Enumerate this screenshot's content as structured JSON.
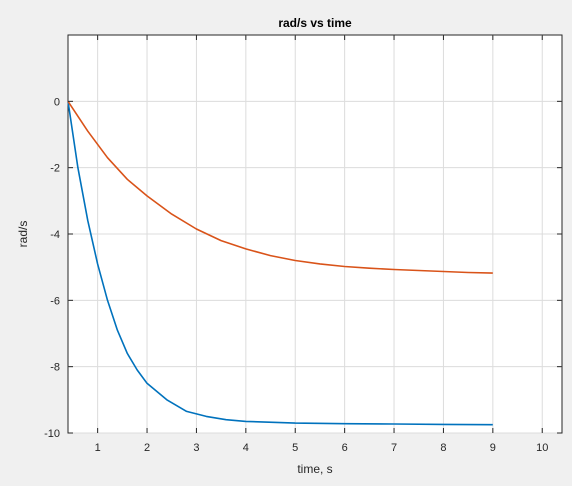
{
  "chart_data": {
    "type": "line",
    "title": "rad/s vs time",
    "xlabel": "time, s",
    "ylabel": "rad/s",
    "xlim": [
      0.4,
      10.4
    ],
    "ylim": [
      -10,
      2
    ],
    "x_ticks": [
      1,
      2,
      3,
      4,
      5,
      6,
      7,
      8,
      9,
      10
    ],
    "y_ticks": [
      -10,
      -8,
      -6,
      -4,
      -2,
      0
    ],
    "grid": true,
    "series": [
      {
        "color": "#0072bd",
        "x": [
          0.4,
          0.6,
          0.8,
          1.0,
          1.2,
          1.4,
          1.6,
          1.8,
          2.0,
          2.4,
          2.8,
          3.2,
          3.6,
          4.0,
          5.0,
          6.0,
          7.0,
          8.0,
          9.0
        ],
        "y": [
          0.0,
          -2.0,
          -3.6,
          -4.9,
          -6.0,
          -6.9,
          -7.6,
          -8.1,
          -8.5,
          -9.0,
          -9.35,
          -9.5,
          -9.6,
          -9.65,
          -9.7,
          -9.72,
          -9.73,
          -9.74,
          -9.75
        ]
      },
      {
        "color": "#d95319",
        "x": [
          0.4,
          0.8,
          1.2,
          1.6,
          2.0,
          2.5,
          3.0,
          3.5,
          4.0,
          4.5,
          5.0,
          5.5,
          6.0,
          6.5,
          7.0,
          7.5,
          8.0,
          8.5,
          9.0
        ],
        "y": [
          0.0,
          -0.9,
          -1.7,
          -2.35,
          -2.85,
          -3.4,
          -3.85,
          -4.2,
          -4.45,
          -4.65,
          -4.8,
          -4.9,
          -4.98,
          -5.03,
          -5.07,
          -5.1,
          -5.13,
          -5.16,
          -5.18
        ]
      }
    ]
  }
}
